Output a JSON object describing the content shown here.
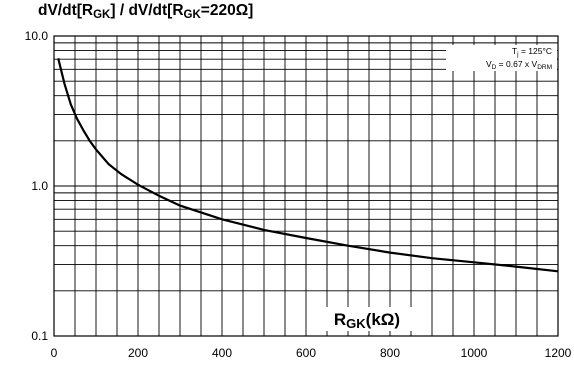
{
  "title": {
    "prefix": "dV/dt[R",
    "sub1": "GK",
    "middle": "] / dV/dt[R",
    "sub2": "GK",
    "suffix": "=220Ω]"
  },
  "annotations": [
    {
      "main": "T",
      "sub": "j",
      "rest": " = 125°C"
    },
    {
      "main": "V",
      "sub": "D",
      "rest": " = 0.67 x V",
      "sub2": "DRM"
    }
  ],
  "chart_data": {
    "type": "line",
    "title": "dV/dt[RGK] / dV/dt[RGK=220Ω]",
    "xlabel": "RGK(kΩ)",
    "ylabel": "",
    "xlim": [
      0,
      1200
    ],
    "ylim": [
      0.1,
      10
    ],
    "y_scale": "log",
    "grid": true,
    "x_ticks": [
      0,
      200,
      400,
      600,
      800,
      1000,
      1200
    ],
    "x_tick_labels": [
      "0",
      "200",
      "400",
      "600",
      "800",
      "1000",
      "1200"
    ],
    "y_ticks": [
      0.1,
      1,
      10
    ],
    "y_tick_labels": [
      "0.1",
      "1.0",
      "10.0"
    ],
    "x_label_main": "R",
    "x_label_sub": "GK",
    "x_label_rest": "(kΩ)",
    "series": [
      {
        "x": [
          10,
          25,
          40,
          55,
          70,
          85,
          100,
          130,
          160,
          200,
          250,
          300,
          400,
          500,
          600,
          700,
          800,
          900,
          1000,
          1100,
          1200
        ],
        "y": [
          7.1,
          4.8,
          3.5,
          2.8,
          2.35,
          2.0,
          1.75,
          1.4,
          1.2,
          1.02,
          0.86,
          0.74,
          0.6,
          0.51,
          0.45,
          0.4,
          0.36,
          0.33,
          0.31,
          0.29,
          0.27
        ]
      }
    ]
  }
}
